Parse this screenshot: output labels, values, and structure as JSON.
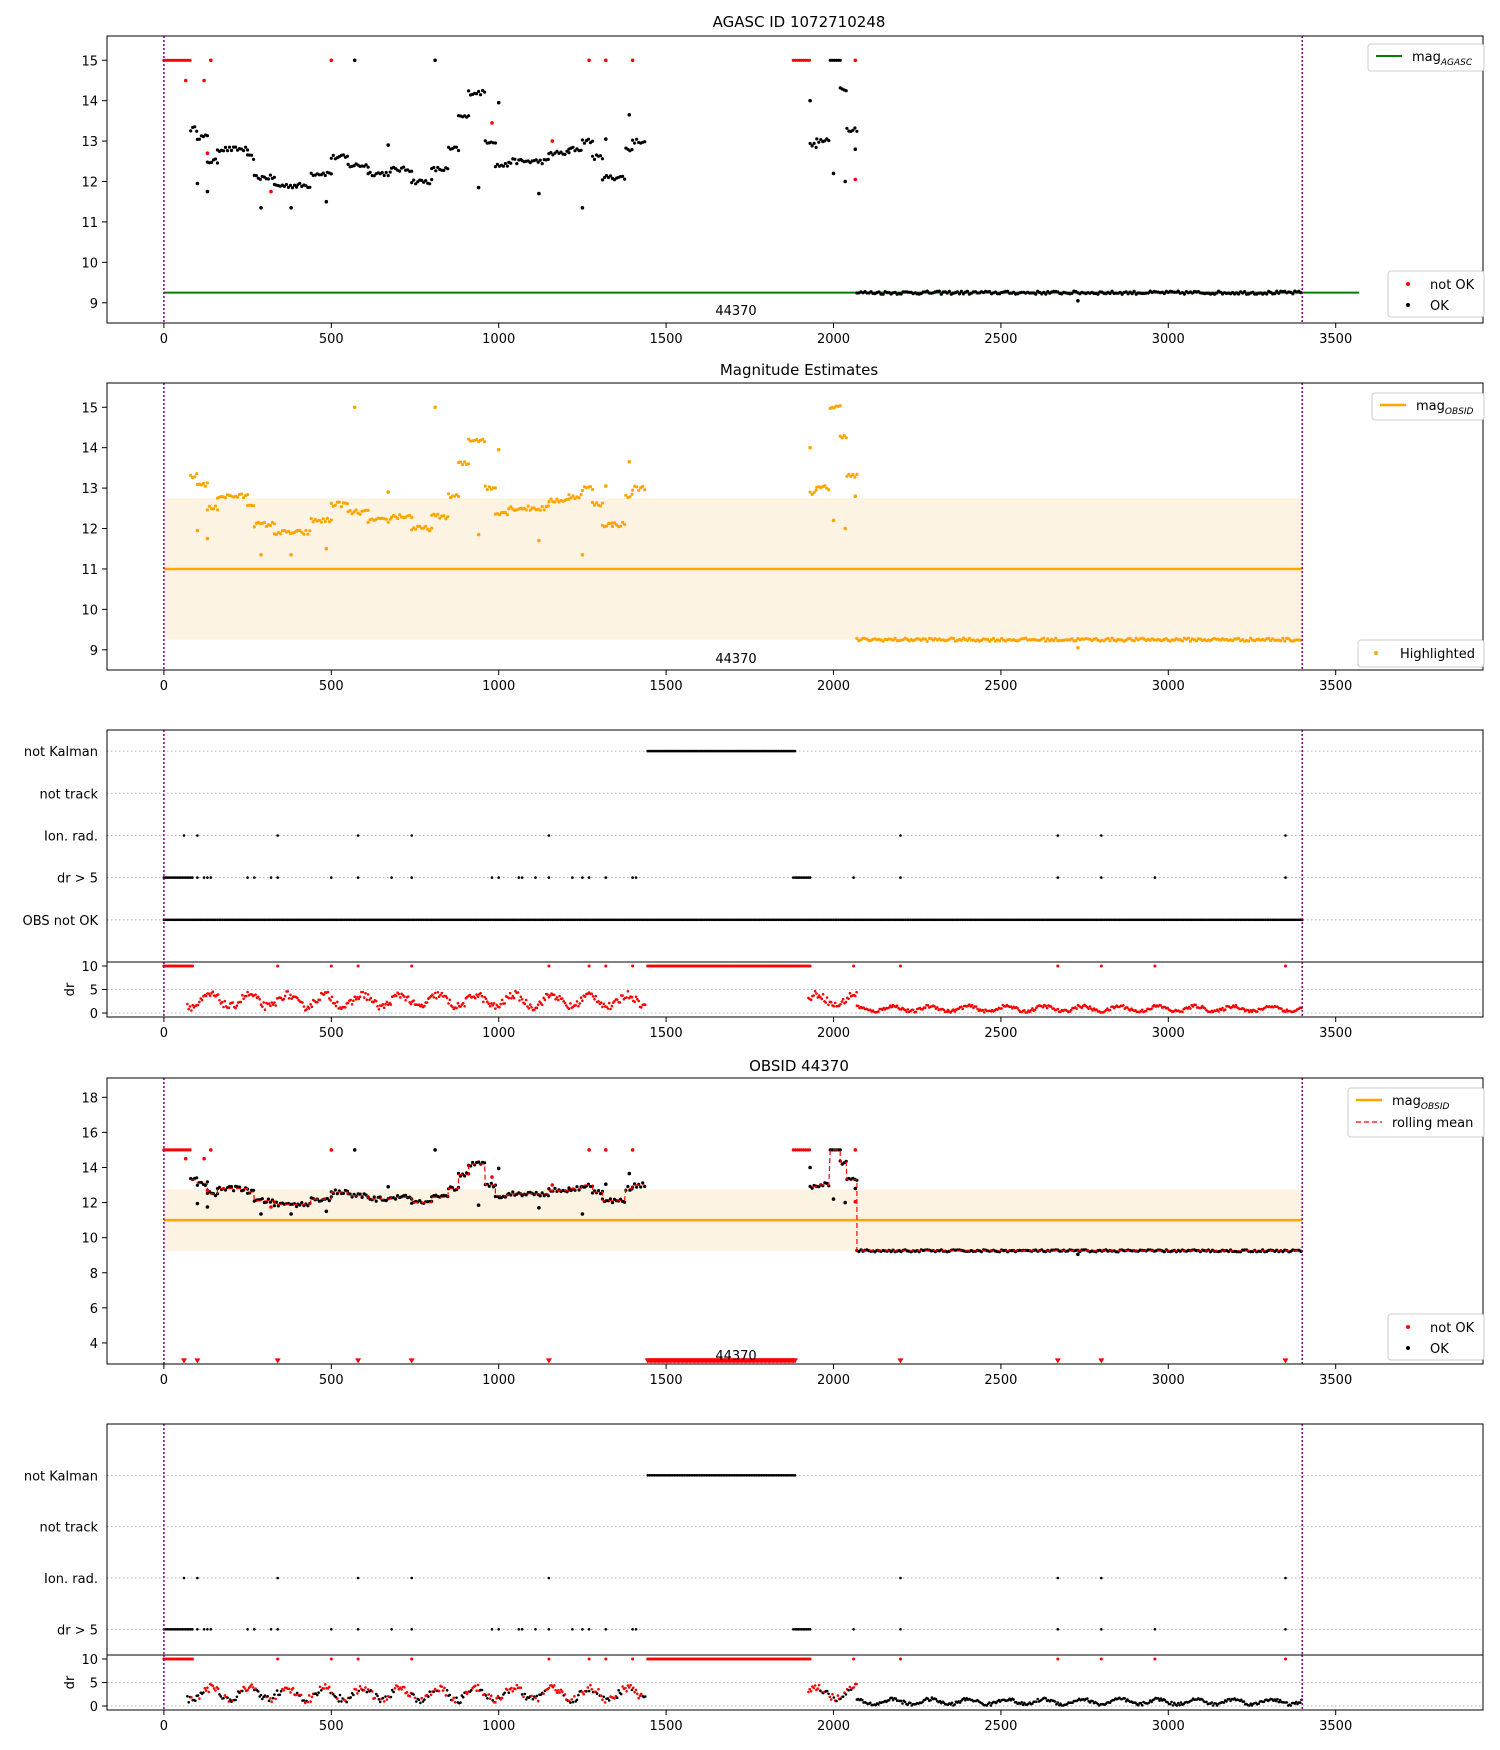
{
  "colors": {
    "agasc": "#008000",
    "obsid": "#ffa500",
    "band": "#fdf3e2",
    "not_ok": "#ff0000",
    "ok": "#000000",
    "vline": "#800080",
    "grid": "#b0b0b0"
  },
  "chart_data": [
    {
      "id": "agasc",
      "type": "scatter",
      "title": "AGASC ID 1072710248",
      "xlim": [
        -170,
        3940
      ],
      "ylim": [
        8.5,
        15.6
      ],
      "xticks": [
        0,
        500,
        1000,
        1500,
        2000,
        2500,
        3000,
        3500
      ],
      "yticks": [
        9,
        10,
        11,
        12,
        13,
        14,
        15
      ],
      "x_range": [
        0,
        3400
      ],
      "hline": {
        "y": 9.25,
        "x": [
          0,
          3570
        ]
      },
      "obsid_label": "44370",
      "legend_top": {
        "mag": "mag",
        "sub": "AGASC"
      },
      "legend_bottom": [
        "not OK",
        "OK"
      ],
      "segments": [
        {
          "x": [
            0,
            80
          ],
          "y": 15.0,
          "status": "not OK"
        },
        {
          "x": [
            80,
            100
          ],
          "y": 13.3,
          "status": "OK"
        },
        {
          "x": [
            100,
            130
          ],
          "y": 13.1,
          "status": "OK"
        },
        {
          "x": [
            130,
            160
          ],
          "y": 12.5,
          "status": "OK"
        },
        {
          "x": [
            160,
            250
          ],
          "y": 12.8,
          "status": "OK"
        },
        {
          "x": [
            250,
            270
          ],
          "y": 12.6,
          "status": "OK"
        },
        {
          "x": [
            270,
            330
          ],
          "y": 12.1,
          "status": "OK"
        },
        {
          "x": [
            330,
            400
          ],
          "y": 11.9,
          "status": "OK"
        },
        {
          "x": [
            400,
            440
          ],
          "y": 11.9,
          "status": "OK"
        },
        {
          "x": [
            440,
            500
          ],
          "y": 12.2,
          "status": "OK"
        },
        {
          "x": [
            500,
            550
          ],
          "y": 12.6,
          "status": "OK"
        },
        {
          "x": [
            550,
            610
          ],
          "y": 12.4,
          "status": "OK"
        },
        {
          "x": [
            610,
            680
          ],
          "y": 12.2,
          "status": "OK"
        },
        {
          "x": [
            680,
            740
          ],
          "y": 12.3,
          "status": "OK"
        },
        {
          "x": [
            740,
            800
          ],
          "y": 12.0,
          "status": "OK"
        },
        {
          "x": [
            800,
            850
          ],
          "y": 12.3,
          "status": "OK"
        },
        {
          "x": [
            850,
            880
          ],
          "y": 12.8,
          "status": "OK"
        },
        {
          "x": [
            880,
            910
          ],
          "y": 13.6,
          "status": "OK"
        },
        {
          "x": [
            910,
            960
          ],
          "y": 14.2,
          "status": "OK"
        },
        {
          "x": [
            960,
            990
          ],
          "y": 13.0,
          "status": "OK"
        },
        {
          "x": [
            990,
            1030
          ],
          "y": 12.4,
          "status": "OK"
        },
        {
          "x": [
            1030,
            1070
          ],
          "y": 12.5,
          "status": "OK"
        },
        {
          "x": [
            1070,
            1150
          ],
          "y": 12.5,
          "status": "OK"
        },
        {
          "x": [
            1150,
            1210
          ],
          "y": 12.7,
          "status": "OK"
        },
        {
          "x": [
            1210,
            1250
          ],
          "y": 12.8,
          "status": "OK"
        },
        {
          "x": [
            1250,
            1280
          ],
          "y": 13.0,
          "status": "OK"
        },
        {
          "x": [
            1280,
            1310
          ],
          "y": 12.6,
          "status": "OK"
        },
        {
          "x": [
            1310,
            1340
          ],
          "y": 12.1,
          "status": "OK"
        },
        {
          "x": [
            1340,
            1380
          ],
          "y": 12.1,
          "status": "OK"
        },
        {
          "x": [
            1380,
            1400
          ],
          "y": 12.8,
          "status": "OK"
        },
        {
          "x": [
            1400,
            1440
          ],
          "y": 13.0,
          "status": "OK"
        },
        {
          "x": [
            1880,
            1930
          ],
          "y": 15.0,
          "status": "not OK"
        },
        {
          "x": [
            1930,
            1950
          ],
          "y": 12.9,
          "status": "OK"
        },
        {
          "x": [
            1950,
            1990
          ],
          "y": 13.0,
          "status": "OK"
        },
        {
          "x": [
            1990,
            2020
          ],
          "y": 15.0,
          "status": "OK"
        },
        {
          "x": [
            2020,
            2040
          ],
          "y": 14.3,
          "status": "OK"
        },
        {
          "x": [
            2040,
            2070
          ],
          "y": 13.3,
          "status": "OK"
        },
        {
          "x": [
            2070,
            3400
          ],
          "y": 9.25,
          "status": "OK"
        }
      ],
      "outliers": [
        {
          "x": 65,
          "y": 14.5,
          "status": "not OK"
        },
        {
          "x": 120,
          "y": 14.5,
          "status": "not OK"
        },
        {
          "x": 130,
          "y": 12.7,
          "status": "not OK"
        },
        {
          "x": 140,
          "y": 15.0,
          "status": "not OK"
        },
        {
          "x": 500,
          "y": 15.0,
          "status": "not OK"
        },
        {
          "x": 1270,
          "y": 15.0,
          "status": "not OK"
        },
        {
          "x": 1320,
          "y": 15.0,
          "status": "not OK"
        },
        {
          "x": 1400,
          "y": 15.0,
          "status": "not OK"
        },
        {
          "x": 980,
          "y": 13.45,
          "status": "not OK"
        },
        {
          "x": 1160,
          "y": 13.0,
          "status": "not OK"
        },
        {
          "x": 2065,
          "y": 15.0,
          "status": "not OK"
        },
        {
          "x": 2065,
          "y": 12.05,
          "status": "not OK"
        },
        {
          "x": 320,
          "y": 11.75,
          "status": "not OK"
        },
        {
          "x": 570,
          "y": 15.0,
          "status": "OK"
        },
        {
          "x": 810,
          "y": 15.0,
          "status": "OK"
        },
        {
          "x": 1000,
          "y": 13.95,
          "status": "OK"
        },
        {
          "x": 1320,
          "y": 13.05,
          "status": "OK"
        },
        {
          "x": 1390,
          "y": 13.65,
          "status": "OK"
        },
        {
          "x": 1930,
          "y": 14.0,
          "status": "OK"
        },
        {
          "x": 2000,
          "y": 12.2,
          "status": "OK"
        },
        {
          "x": 2035,
          "y": 12.0,
          "status": "OK"
        },
        {
          "x": 2065,
          "y": 12.8,
          "status": "OK"
        },
        {
          "x": 290,
          "y": 11.35,
          "status": "OK"
        },
        {
          "x": 380,
          "y": 11.35,
          "status": "OK"
        },
        {
          "x": 485,
          "y": 11.5,
          "status": "OK"
        },
        {
          "x": 1250,
          "y": 11.35,
          "status": "OK"
        },
        {
          "x": 1120,
          "y": 11.7,
          "status": "OK"
        },
        {
          "x": 2730,
          "y": 9.05,
          "status": "OK"
        },
        {
          "x": 100,
          "y": 11.95,
          "status": "OK"
        },
        {
          "x": 130,
          "y": 11.75,
          "status": "OK"
        },
        {
          "x": 940,
          "y": 11.85,
          "status": "OK"
        },
        {
          "x": 670,
          "y": 12.9,
          "status": "OK"
        }
      ]
    },
    {
      "id": "estimates",
      "type": "scatter",
      "title": "Magnitude Estimates",
      "xlim": [
        -170,
        3940
      ],
      "ylim": [
        8.5,
        15.6
      ],
      "xticks": [
        0,
        500,
        1000,
        1500,
        2000,
        2500,
        3000,
        3500
      ],
      "yticks": [
        9,
        10,
        11,
        12,
        13,
        14,
        15
      ],
      "x_range": [
        0,
        3400
      ],
      "hline": {
        "y": 11.0,
        "x": [
          0,
          3400
        ]
      },
      "band": {
        "y": [
          9.25,
          12.75
        ],
        "x": [
          0,
          3400
        ]
      },
      "obsid_label": "44370",
      "legend_top": {
        "mag": "mag",
        "sub": "OBSID"
      },
      "legend_bottom": [
        "Highlighted"
      ]
    },
    {
      "id": "flags_1",
      "type": "scatter",
      "categories": [
        "not Kalman",
        "not track",
        "Ion. rad.",
        "dr > 5",
        "OBS not OK"
      ],
      "xlim": [
        -170,
        3940
      ],
      "xticks": [
        0,
        500,
        1000,
        1500,
        2000,
        2500,
        3000,
        3500
      ],
      "not_kalman": [
        [
          1445,
          1885
        ]
      ],
      "ion_rad": [
        60,
        100,
        340,
        580,
        740,
        1150,
        2200,
        2670,
        2800,
        3350
      ],
      "dr5_runs": [
        [
          0,
          85
        ],
        [
          1880,
          1930
        ]
      ],
      "dr5_points": [
        100,
        120,
        130,
        140,
        250,
        270,
        320,
        340,
        500,
        580,
        680,
        740,
        980,
        1000,
        1060,
        1070,
        1110,
        1150,
        1220,
        1250,
        1270,
        1320,
        1400,
        1410,
        2060,
        2200,
        2670,
        2800,
        2960,
        3350
      ],
      "obs_not_ok": [
        0,
        3400
      ],
      "dr_panel": {
        "ylabel": "dr",
        "ylim": [
          0,
          10
        ],
        "yticks": [
          0,
          5,
          10
        ],
        "segments": [
          {
            "x": [
              70,
              1440
            ],
            "level": 2.6,
            "amp": 1.6
          },
          {
            "x": [
              1925,
              2070
            ],
            "level": 2.8,
            "amp": 1.5
          },
          {
            "x": [
              2070,
              3400
            ],
            "level": 0.9,
            "amp": 0.7
          }
        ],
        "top_runs": [
          [
            0,
            85
          ],
          [
            1445,
            1930
          ]
        ],
        "top_points": [
          340,
          500,
          580,
          740,
          1150,
          1270,
          1320,
          1400,
          2060,
          2200,
          2670,
          2800,
          2960,
          3350
        ]
      }
    },
    {
      "id": "obsid",
      "type": "scatter",
      "title": "OBSID 44370",
      "xlim": [
        -170,
        3940
      ],
      "ylim": [
        2.8,
        19.1
      ],
      "xticks": [
        0,
        500,
        1000,
        1500,
        2000,
        2500,
        3000,
        3500
      ],
      "yticks": [
        4,
        6,
        8,
        10,
        12,
        14,
        16,
        18
      ],
      "x_range": [
        0,
        3400
      ],
      "hline": {
        "y": 11.0,
        "x": [
          0,
          3400
        ]
      },
      "band": {
        "y": [
          9.25,
          12.75
        ],
        "x": [
          0,
          3400
        ]
      },
      "obsid_label": "44370",
      "legend_top": {
        "mag": "mag",
        "sub": "OBSID",
        "mean": "rolling mean"
      },
      "legend_bottom": [
        "not OK",
        "OK"
      ],
      "markers_y": 2.95,
      "marker_runs": [
        [
          1445,
          1885
        ]
      ],
      "marker_points": [
        60,
        100,
        340,
        580,
        740,
        1150,
        2200,
        2670,
        2800,
        3350
      ]
    },
    {
      "id": "flags_2",
      "type": "scatter",
      "categories": [
        "not Kalman",
        "not track",
        "Ion. rad.",
        "dr > 5"
      ],
      "xlim": [
        -170,
        3940
      ],
      "xticks": [
        0,
        500,
        1000,
        1500,
        2000,
        2500,
        3000,
        3500
      ],
      "not_kalman": [
        [
          1445,
          1885
        ]
      ],
      "dr_panel": {
        "ylabel": "dr",
        "ylim": [
          0,
          10
        ],
        "yticks": [
          0,
          5,
          10
        ]
      }
    }
  ]
}
